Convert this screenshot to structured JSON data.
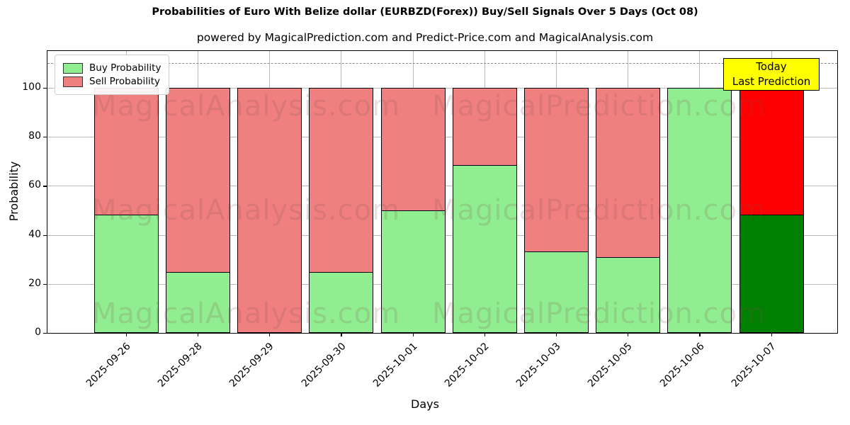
{
  "title": "Probabilities of Euro With Belize dollar (EURBZD(Forex)) Buy/Sell Signals Over 5 Days (Oct 08)",
  "subtitle": "powered by MagicalPrediction.com and Predict-Price.com and MagicalAnalysis.com",
  "legend": {
    "items": [
      {
        "label": "Buy Probability",
        "color": "#90EE90"
      },
      {
        "label": "Sell Probability",
        "color": "#F08080"
      }
    ]
  },
  "annotation": {
    "line1": "Today",
    "line2": "Last Prediction",
    "bg_color": "#FFFF00"
  },
  "watermarks": {
    "left_text": "MagicalAnalysis.com",
    "right_text": "MagicalPrediction.com"
  },
  "chart_data": {
    "type": "bar",
    "stacked": true,
    "title": "Probabilities of Euro With Belize dollar (EURBZD(Forex)) Buy/Sell Signals Over 5 Days (Oct 08)",
    "xlabel": "Days",
    "ylabel": "Probability",
    "categories": [
      "2025-09-26",
      "2025-09-28",
      "2025-09-29",
      "2025-09-30",
      "2025-10-01",
      "2025-10-02",
      "2025-10-03",
      "2025-10-05",
      "2025-10-06",
      "2025-10-07"
    ],
    "series": [
      {
        "name": "Buy Probability",
        "values": [
          48.5,
          25,
          0,
          25,
          50,
          68.5,
          33.5,
          31,
          100,
          48.5
        ],
        "color": "#90EE90",
        "today_color": "#008000"
      },
      {
        "name": "Sell Probability",
        "values": [
          51.5,
          75,
          100,
          75,
          50,
          31.5,
          66.5,
          69,
          0,
          51.5
        ],
        "color": "#F08080",
        "today_color": "#FF0000"
      }
    ],
    "today_index": 9,
    "yticks": [
      0,
      20,
      40,
      60,
      80,
      100
    ],
    "ylim": [
      0,
      115
    ],
    "threshold_dashed_line_y": 110,
    "grid": true,
    "legend_position": "upper left"
  }
}
